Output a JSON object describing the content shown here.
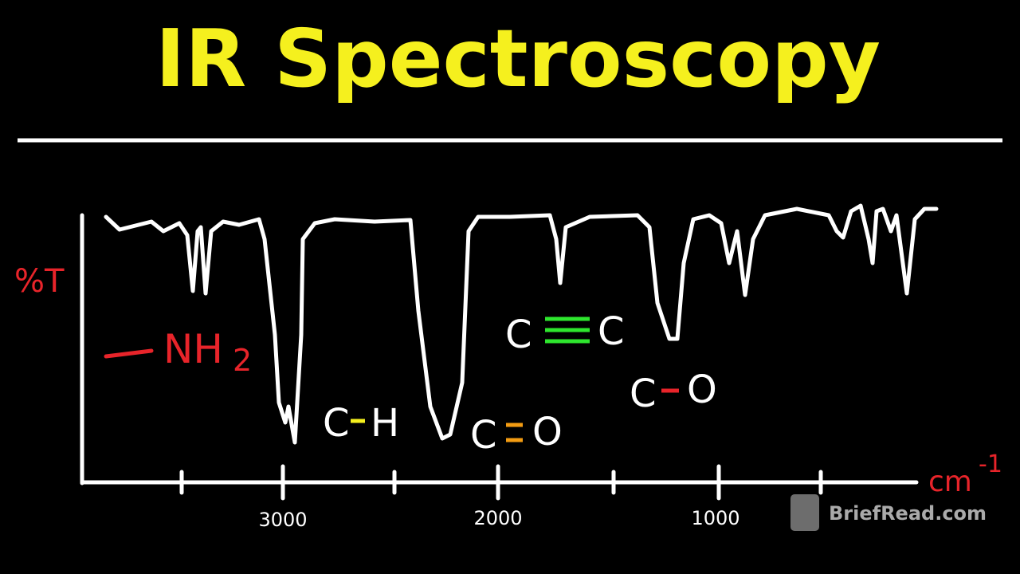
{
  "title": "IR Spectroscopy",
  "axes": {
    "y_label": "%T",
    "x_label": "cm",
    "x_label_exponent": "-1",
    "x_tick_labels": [
      "3000",
      "2000",
      "1000"
    ]
  },
  "annotations": {
    "amine": {
      "group": "NH",
      "subscript": "2"
    },
    "ch": {
      "left": "C",
      "right": "H"
    },
    "co_double": {
      "left": "C",
      "right": "O"
    },
    "cc_triple": {
      "left": "C",
      "right": "C"
    },
    "co_single": {
      "left": "C",
      "right": "O"
    }
  },
  "watermark": "BriefRead.com"
}
